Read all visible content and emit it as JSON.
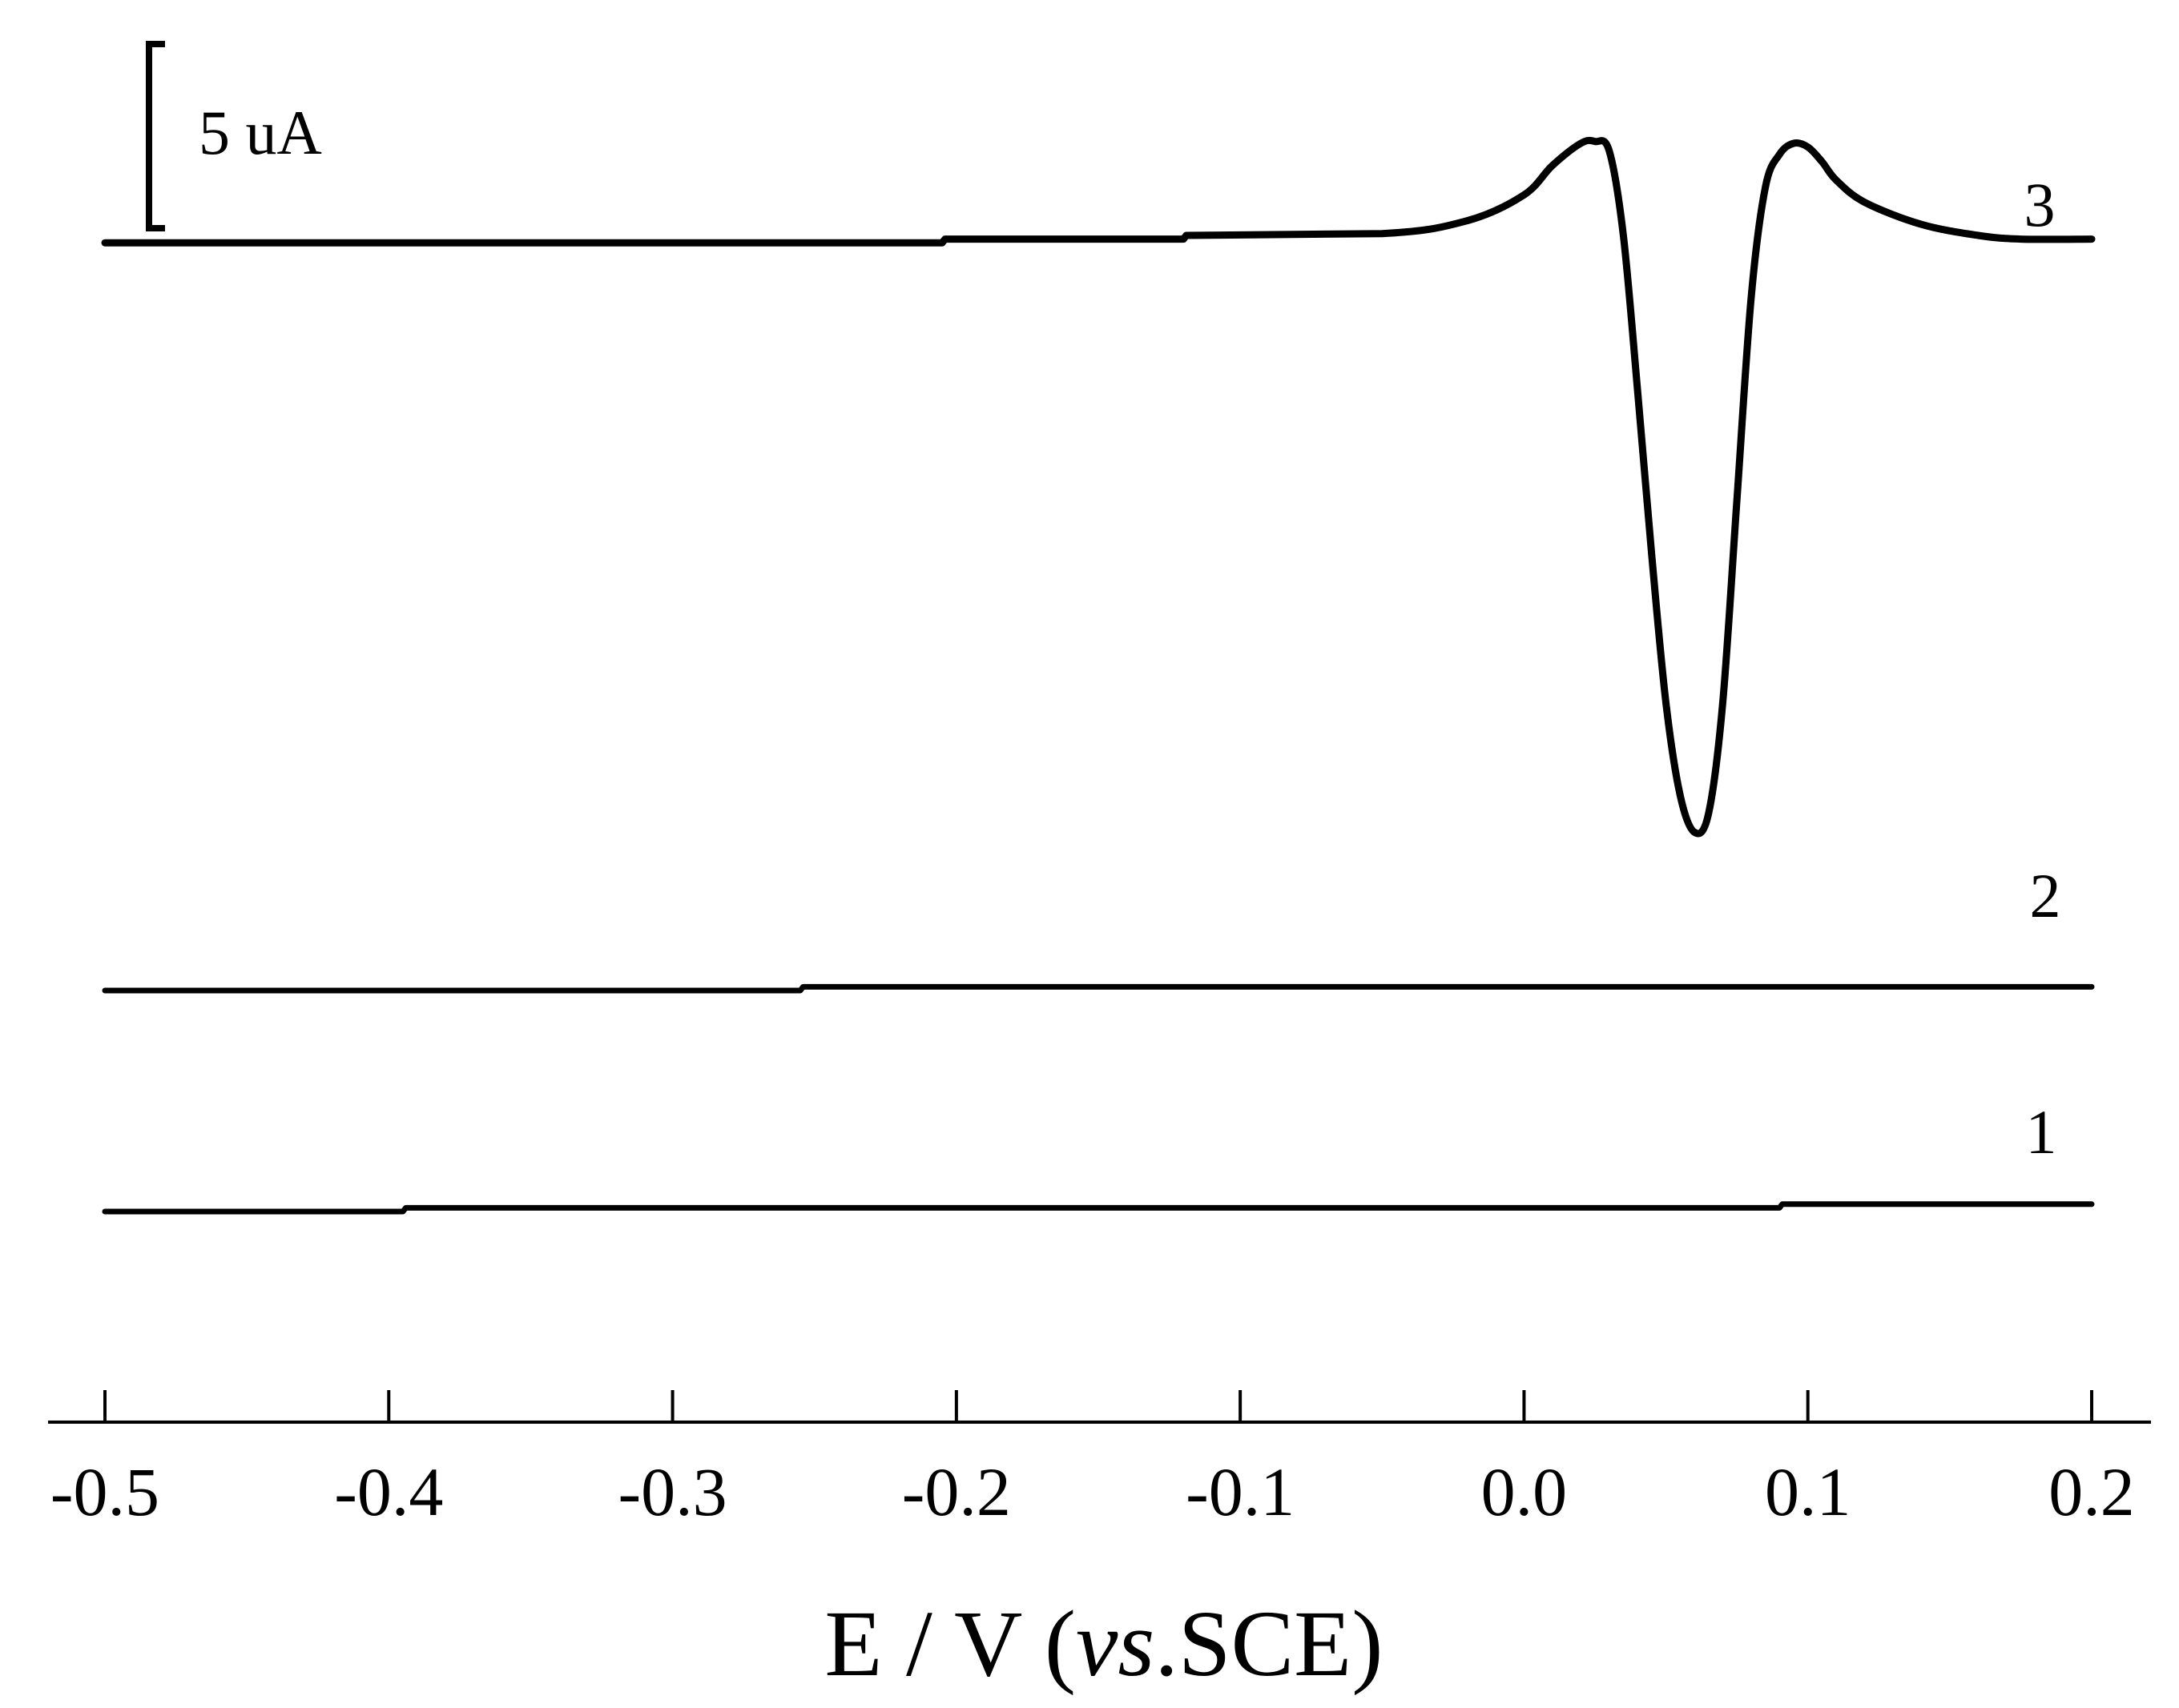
{
  "chart_data": {
    "type": "line",
    "xlabel_parts": [
      "E / V (",
      "vs",
      ".SCE)"
    ],
    "xlim": [
      -0.5,
      0.2
    ],
    "x_ticks": [
      "-0.5",
      "-0.4",
      "-0.3",
      "-0.2",
      "-0.1",
      "0.0",
      "0.1",
      "0.2"
    ],
    "x_tick_values": [
      -0.5,
      -0.4,
      -0.3,
      -0.2,
      -0.1,
      0.0,
      0.1,
      0.2
    ],
    "scale_bar": {
      "label": "5 uA",
      "value_uA": 5
    },
    "series": [
      {
        "name": "1",
        "offset_uA": 0,
        "x": [
          -0.5,
          -0.395,
          -0.394,
          0.09,
          0.091,
          0.2
        ],
        "y": [
          0,
          0,
          0.1,
          0.1,
          0.2,
          0.2
        ]
      },
      {
        "name": "2",
        "offset_uA": 6,
        "x": [
          -0.5,
          -0.255,
          -0.254,
          0.2
        ],
        "y": [
          0,
          0,
          0.1,
          0.1
        ]
      },
      {
        "name": "3",
        "offset_uA": 26.3,
        "x": [
          -0.5,
          -0.205,
          -0.204,
          -0.12,
          -0.119,
          -0.05,
          -0.02,
          0.0,
          0.01,
          0.02,
          0.025,
          0.03,
          0.035,
          0.04,
          0.045,
          0.05,
          0.055,
          0.06,
          0.065,
          0.07,
          0.075,
          0.08,
          0.085,
          0.09,
          0.095,
          0.1,
          0.105,
          0.11,
          0.12,
          0.14,
          0.16,
          0.175,
          0.2
        ],
        "y": [
          0,
          0,
          0.1,
          0.1,
          0.2,
          0.25,
          0.6,
          1.3,
          2.1,
          2.7,
          2.75,
          2.5,
          0.2,
          -4.0,
          -8.5,
          -12.5,
          -15.0,
          -16.0,
          -15.5,
          -12.5,
          -7.0,
          -1.5,
          1.5,
          2.4,
          2.7,
          2.6,
          2.2,
          1.7,
          1.1,
          0.5,
          0.2,
          0.1,
          0.1
        ]
      }
    ]
  }
}
